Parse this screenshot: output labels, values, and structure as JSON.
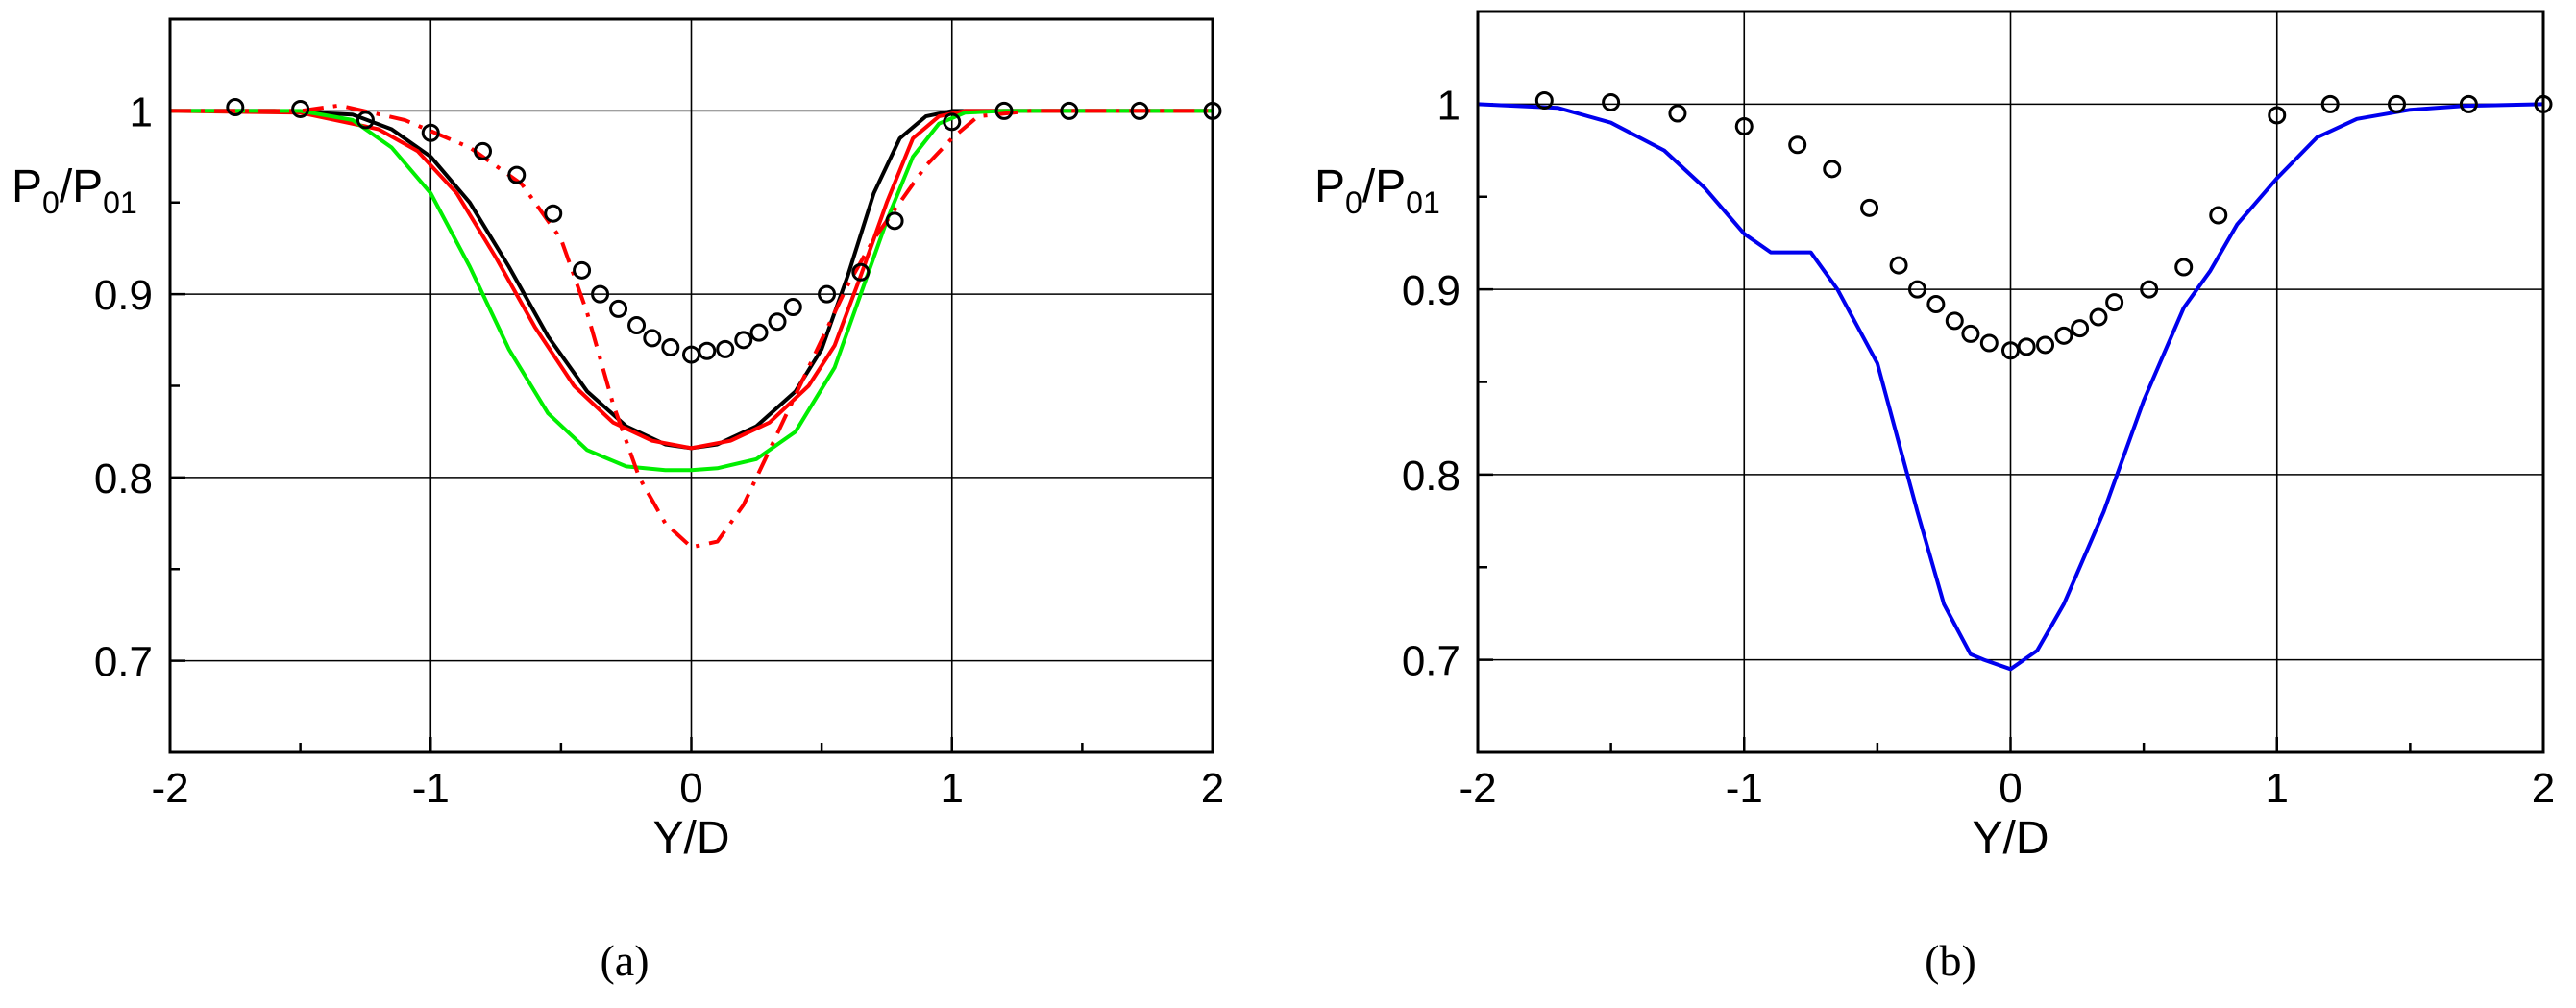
{
  "chart_data": [
    {
      "panel": "a",
      "caption": "(a)",
      "type": "line",
      "xlabel": "Y/D",
      "ylabel": {
        "main": "P",
        "sub1": "0",
        "slash": "/P",
        "sub2": "01"
      },
      "xlim": [
        -2,
        2
      ],
      "ylim": [
        0.65,
        1.05
      ],
      "xticks": [
        -2,
        -1,
        0,
        1,
        2
      ],
      "xtick_labels": [
        "-2",
        "-1",
        "0",
        "1",
        "2"
      ],
      "yticks": [
        0.7,
        0.8,
        0.9,
        1.0
      ],
      "ytick_labels": [
        "0.7",
        "0.8",
        "0.9",
        "1"
      ],
      "grid": true,
      "series": [
        {
          "color": "#000000",
          "style": "solid",
          "x": [
            -2,
            -1.6,
            -1.3,
            -1.15,
            -1.0,
            -0.85,
            -0.7,
            -0.55,
            -0.4,
            -0.25,
            -0.1,
            0,
            0.1,
            0.25,
            0.4,
            0.5,
            0.6,
            0.7,
            0.8,
            0.9,
            1.0,
            1.2,
            1.5,
            2.0
          ],
          "y": [
            1.0,
            1.0,
            0.998,
            0.99,
            0.975,
            0.95,
            0.915,
            0.877,
            0.847,
            0.828,
            0.818,
            0.816,
            0.818,
            0.828,
            0.847,
            0.87,
            0.91,
            0.955,
            0.985,
            0.997,
            1.0,
            1.0,
            1.0,
            1.0
          ]
        },
        {
          "color": "#ff0000",
          "style": "solid",
          "x": [
            -2,
            -1.5,
            -1.2,
            -1.05,
            -0.9,
            -0.75,
            -0.6,
            -0.45,
            -0.3,
            -0.15,
            0,
            0.15,
            0.3,
            0.45,
            0.55,
            0.65,
            0.75,
            0.85,
            0.95,
            1.05,
            1.2,
            1.5,
            2.0
          ],
          "y": [
            1.0,
            0.999,
            0.99,
            0.978,
            0.955,
            0.92,
            0.882,
            0.85,
            0.83,
            0.82,
            0.816,
            0.82,
            0.83,
            0.85,
            0.872,
            0.91,
            0.95,
            0.985,
            0.997,
            1.0,
            1.0,
            1.0,
            1.0
          ]
        },
        {
          "color": "#00ee00",
          "style": "solid",
          "x": [
            -2,
            -1.5,
            -1.3,
            -1.15,
            -1.0,
            -0.85,
            -0.7,
            -0.55,
            -0.4,
            -0.25,
            -0.1,
            0,
            0.1,
            0.25,
            0.4,
            0.55,
            0.65,
            0.75,
            0.85,
            0.95,
            1.05,
            1.2,
            1.5,
            2.0
          ],
          "y": [
            1.0,
            1.0,
            0.995,
            0.98,
            0.955,
            0.915,
            0.87,
            0.835,
            0.815,
            0.806,
            0.804,
            0.804,
            0.805,
            0.81,
            0.825,
            0.86,
            0.9,
            0.94,
            0.975,
            0.993,
            0.999,
            1.0,
            1.0,
            1.0
          ]
        },
        {
          "color": "#ff0000",
          "style": "dashdot",
          "x": [
            -2,
            -1.5,
            -1.35,
            -1.1,
            -0.85,
            -0.65,
            -0.5,
            -0.4,
            -0.3,
            -0.2,
            -0.1,
            0,
            0.1,
            0.2,
            0.3,
            0.4,
            0.5,
            0.6,
            0.7,
            0.8,
            0.9,
            1.0,
            1.1,
            1.3,
            2.0
          ],
          "y": [
            1.0,
            1.0,
            1.003,
            0.995,
            0.98,
            0.96,
            0.93,
            0.89,
            0.84,
            0.8,
            0.775,
            0.762,
            0.765,
            0.785,
            0.815,
            0.845,
            0.875,
            0.905,
            0.93,
            0.95,
            0.97,
            0.985,
            0.997,
            1.0,
            1.0
          ]
        },
        {
          "color": "#000000",
          "style": "markers",
          "x": [
            -1.75,
            -1.5,
            -1.25,
            -1.0,
            -0.8,
            -0.67,
            -0.53,
            -0.42,
            -0.35,
            -0.28,
            -0.21,
            -0.15,
            -0.08,
            0.0,
            0.06,
            0.13,
            0.2,
            0.26,
            0.33,
            0.39,
            0.52,
            0.65,
            0.78,
            1.0,
            1.2,
            1.45,
            1.72,
            2.0
          ],
          "y": [
            1.002,
            1.001,
            0.995,
            0.988,
            0.978,
            0.965,
            0.944,
            0.913,
            0.9,
            0.892,
            0.883,
            0.876,
            0.871,
            0.867,
            0.869,
            0.87,
            0.875,
            0.879,
            0.885,
            0.893,
            0.9,
            0.912,
            0.94,
            0.994,
            1.0,
            1.0,
            1.0,
            1.0
          ]
        }
      ]
    },
    {
      "panel": "b",
      "caption": "(b)",
      "type": "line",
      "xlabel": "Y/D",
      "ylabel": {
        "main": "P",
        "sub1": "0",
        "slash": "/P",
        "sub2": "01"
      },
      "xlim": [
        -2,
        2
      ],
      "ylim": [
        0.65,
        1.05
      ],
      "xticks": [
        -2,
        -1,
        0,
        1,
        2
      ],
      "xtick_labels": [
        "-2",
        "-1",
        "0",
        "1",
        "2"
      ],
      "yticks": [
        0.7,
        0.8,
        0.9,
        1.0
      ],
      "ytick_labels": [
        "0.7",
        "0.8",
        "0.9",
        "1"
      ],
      "grid": true,
      "series": [
        {
          "color": "#0000ee",
          "style": "solid",
          "x": [
            -2,
            -1.7,
            -1.5,
            -1.3,
            -1.15,
            -1.0,
            -0.9,
            -0.75,
            -0.65,
            -0.5,
            -0.35,
            -0.25,
            -0.15,
            -0.1,
            0,
            0.1,
            0.2,
            0.35,
            0.5,
            0.65,
            0.75,
            0.85,
            1.0,
            1.15,
            1.3,
            1.5,
            1.7,
            2.0
          ],
          "y": [
            1.0,
            0.998,
            0.99,
            0.975,
            0.955,
            0.93,
            0.92,
            0.92,
            0.9,
            0.86,
            0.78,
            0.73,
            0.703,
            0.7,
            0.695,
            0.705,
            0.73,
            0.78,
            0.84,
            0.89,
            0.91,
            0.935,
            0.96,
            0.982,
            0.992,
            0.997,
            0.999,
            1.0
          ]
        },
        {
          "color": "#000000",
          "style": "markers",
          "x": [
            -1.75,
            -1.5,
            -1.25,
            -1.0,
            -0.8,
            -0.67,
            -0.53,
            -0.42,
            -0.35,
            -0.28,
            -0.21,
            -0.15,
            -0.08,
            0.0,
            0.06,
            0.13,
            0.2,
            0.26,
            0.33,
            0.39,
            0.52,
            0.65,
            0.78,
            1.0,
            1.2,
            1.45,
            1.72,
            2.0
          ],
          "y": [
            1.002,
            1.001,
            0.995,
            0.988,
            0.978,
            0.965,
            0.944,
            0.913,
            0.9,
            0.892,
            0.883,
            0.876,
            0.871,
            0.867,
            0.869,
            0.87,
            0.875,
            0.879,
            0.885,
            0.893,
            0.9,
            0.912,
            0.94,
            0.994,
            1.0,
            1.0,
            1.0,
            1.0
          ]
        }
      ]
    }
  ]
}
